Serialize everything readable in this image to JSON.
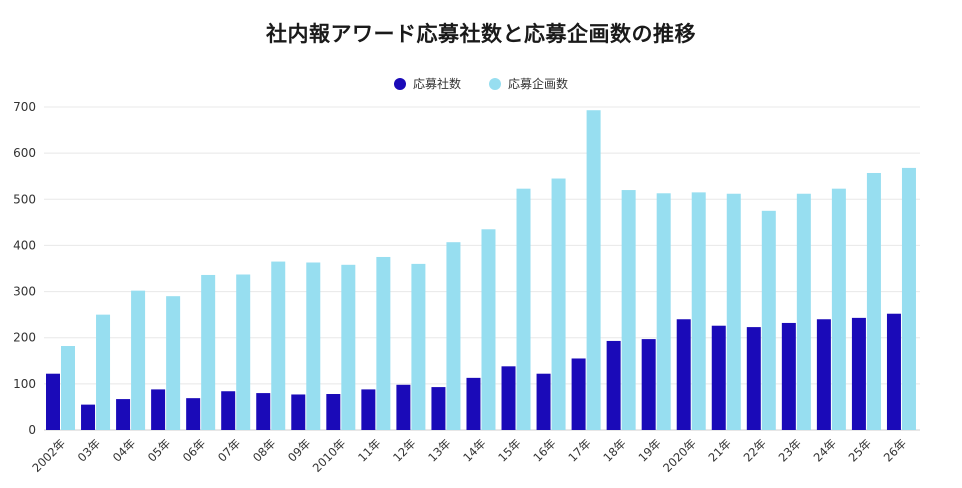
{
  "chart_data": {
    "type": "bar",
    "title": "社内報アワード応募社数と応募企画数の推移",
    "xlabel": "",
    "ylabel": "",
    "ylim": [
      0,
      700
    ],
    "yticks": [
      0,
      100,
      200,
      300,
      400,
      500,
      600,
      700
    ],
    "grid": true,
    "legend_position": "top-center",
    "categories": [
      "2002年",
      "03年",
      "04年",
      "05年",
      "06年",
      "07年",
      "08年",
      "09年",
      "2010年",
      "11年",
      "12年",
      "13年",
      "14年",
      "15年",
      "16年",
      "17年",
      "18年",
      "19年",
      "2020年",
      "21年",
      "22年",
      "23年",
      "24年",
      "25年",
      "26年"
    ],
    "series": [
      {
        "name": "応募社数",
        "color": "#1a0ab8",
        "values": [
          122,
          55,
          67,
          88,
          69,
          84,
          80,
          77,
          78,
          88,
          98,
          93,
          113,
          138,
          122,
          155,
          193,
          197,
          240,
          226,
          223,
          232,
          240,
          243,
          252
        ]
      },
      {
        "name": "応募企画数",
        "color": "#97def0",
        "values": [
          182,
          250,
          302,
          290,
          336,
          337,
          365,
          363,
          358,
          375,
          360,
          407,
          435,
          523,
          545,
          693,
          520,
          513,
          515,
          512,
          475,
          512,
          523,
          557,
          568
        ]
      }
    ]
  }
}
